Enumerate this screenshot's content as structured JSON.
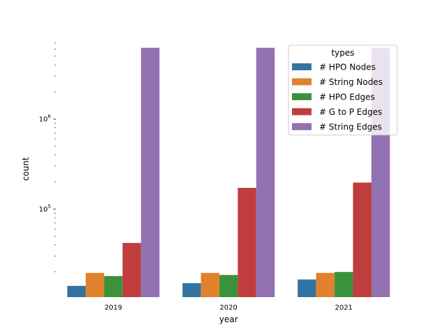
{
  "chart_data": {
    "type": "bar",
    "xlabel": "year",
    "ylabel": "count",
    "yscale": "log",
    "ylim": [
      10500,
      7500000
    ],
    "y_major_ticks": [
      {
        "value": 100000,
        "base": "10",
        "exp": "5"
      },
      {
        "value": 1000000,
        "base": "10",
        "exp": "6"
      }
    ],
    "categories": [
      "2019",
      "2020",
      "2021"
    ],
    "series": [
      {
        "name": "# HPO Nodes",
        "color": "#3274a1",
        "values": [
          14000,
          15000,
          16500
        ]
      },
      {
        "name": "# String Nodes",
        "color": "#e1812c",
        "values": [
          19500,
          19500,
          19500
        ]
      },
      {
        "name": "# HPO Edges",
        "color": "#3a923a",
        "values": [
          18000,
          18500,
          20000
        ]
      },
      {
        "name": "# G to P Edges",
        "color": "#c03d3e",
        "values": [
          42000,
          172000,
          197000
        ]
      },
      {
        "name": "# String Edges",
        "color": "#9372b2",
        "values": [
          6200000,
          6200000,
          6200000
        ]
      }
    ],
    "legend": {
      "title": "types",
      "position": "top-right"
    },
    "grid": false
  }
}
